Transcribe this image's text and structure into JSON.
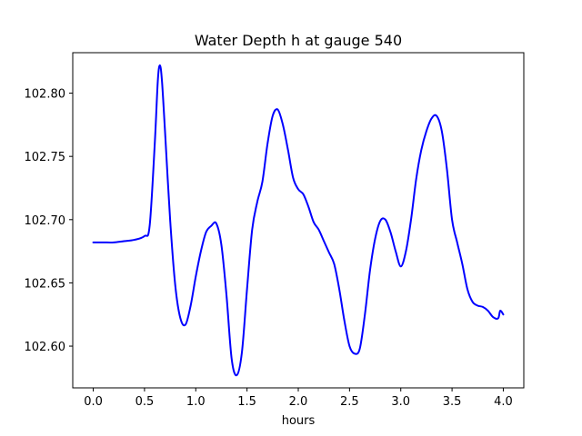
{
  "chart_data": {
    "type": "line",
    "title": "Water Depth h at gauge 540",
    "xlabel": "hours",
    "ylabel": "",
    "xlim": [
      -0.2,
      4.2
    ],
    "ylim": [
      102.567,
      102.832
    ],
    "xticks": [
      0.0,
      0.5,
      1.0,
      1.5,
      2.0,
      2.5,
      3.0,
      3.5,
      4.0
    ],
    "xtick_labels": [
      "0.0",
      "0.5",
      "1.0",
      "1.5",
      "2.0",
      "2.5",
      "3.0",
      "3.5",
      "4.0"
    ],
    "yticks": [
      102.6,
      102.65,
      102.7,
      102.75,
      102.8
    ],
    "ytick_labels": [
      "102.60",
      "102.65",
      "102.70",
      "102.75",
      "102.80"
    ],
    "grid": false,
    "series": [
      {
        "name": "h",
        "color": "#0000ff",
        "x": [
          0.0,
          0.1,
          0.2,
          0.3,
          0.4,
          0.5,
          0.55,
          0.6,
          0.63,
          0.65,
          0.67,
          0.7,
          0.75,
          0.8,
          0.85,
          0.9,
          0.95,
          1.0,
          1.05,
          1.1,
          1.15,
          1.2,
          1.25,
          1.3,
          1.35,
          1.4,
          1.45,
          1.5,
          1.55,
          1.6,
          1.65,
          1.7,
          1.75,
          1.8,
          1.85,
          1.9,
          1.95,
          2.0,
          2.05,
          2.1,
          2.15,
          2.2,
          2.25,
          2.3,
          2.35,
          2.4,
          2.45,
          2.5,
          2.55,
          2.6,
          2.65,
          2.7,
          2.75,
          2.8,
          2.85,
          2.9,
          2.95,
          3.0,
          3.05,
          3.1,
          3.15,
          3.2,
          3.25,
          3.3,
          3.35,
          3.4,
          3.45,
          3.5,
          3.55,
          3.6,
          3.65,
          3.7,
          3.75,
          3.8,
          3.85,
          3.9,
          3.95,
          3.97,
          4.0
        ],
        "values": [
          102.682,
          102.682,
          102.682,
          102.683,
          102.684,
          102.687,
          102.695,
          102.76,
          102.81,
          102.822,
          102.81,
          102.77,
          102.7,
          102.648,
          102.622,
          102.617,
          102.632,
          102.655,
          102.675,
          102.69,
          102.695,
          102.697,
          102.68,
          102.64,
          102.59,
          102.577,
          102.595,
          102.645,
          102.692,
          102.714,
          102.73,
          102.76,
          102.782,
          102.787,
          102.775,
          102.755,
          102.733,
          102.724,
          102.72,
          102.71,
          102.698,
          102.692,
          102.683,
          102.674,
          102.665,
          102.645,
          102.62,
          102.6,
          102.594,
          102.598,
          102.625,
          102.66,
          102.685,
          102.699,
          102.7,
          102.69,
          102.675,
          102.663,
          102.675,
          102.7,
          102.732,
          102.755,
          102.77,
          102.78,
          102.782,
          102.77,
          102.74,
          102.7,
          102.682,
          102.665,
          102.645,
          102.635,
          102.632,
          102.631,
          102.628,
          102.623,
          102.622,
          102.628,
          102.625
        ]
      }
    ]
  }
}
